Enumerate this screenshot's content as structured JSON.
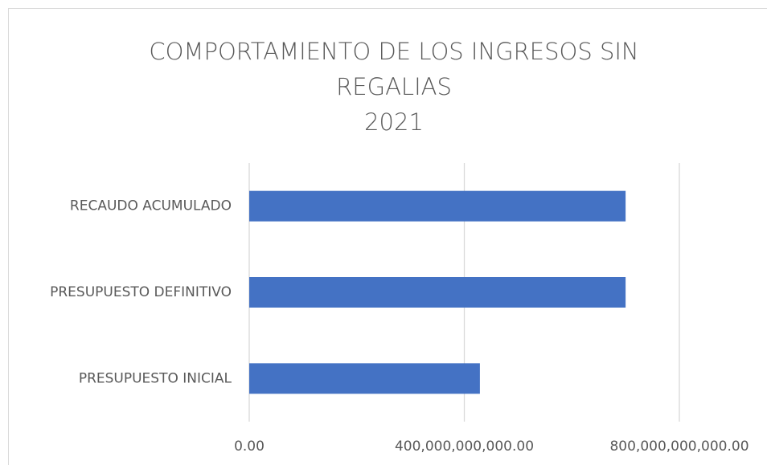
{
  "chart_data": {
    "type": "bar",
    "orientation": "horizontal",
    "title": "COMPORTAMIENTO DE LOS INGRESOS SIN REGALIAS",
    "subtitle": "2021",
    "categories": [
      "RECAUDO ACUMULADO",
      "PRESUPUESTO DEFINITIVO",
      "PRESUPUESTO INICIAL"
    ],
    "values": [
      700000000000,
      700000000000,
      429000000000
    ],
    "color": "#4472c4",
    "xlim": [
      0,
      800000000000
    ],
    "xticks": [
      {
        "value": 0,
        "label": "0.00"
      },
      {
        "value": 400000000000,
        "label": "400,000,000,000.00"
      },
      {
        "value": 800000000000,
        "label": "800,000,000,000.00"
      }
    ],
    "grid": true
  }
}
